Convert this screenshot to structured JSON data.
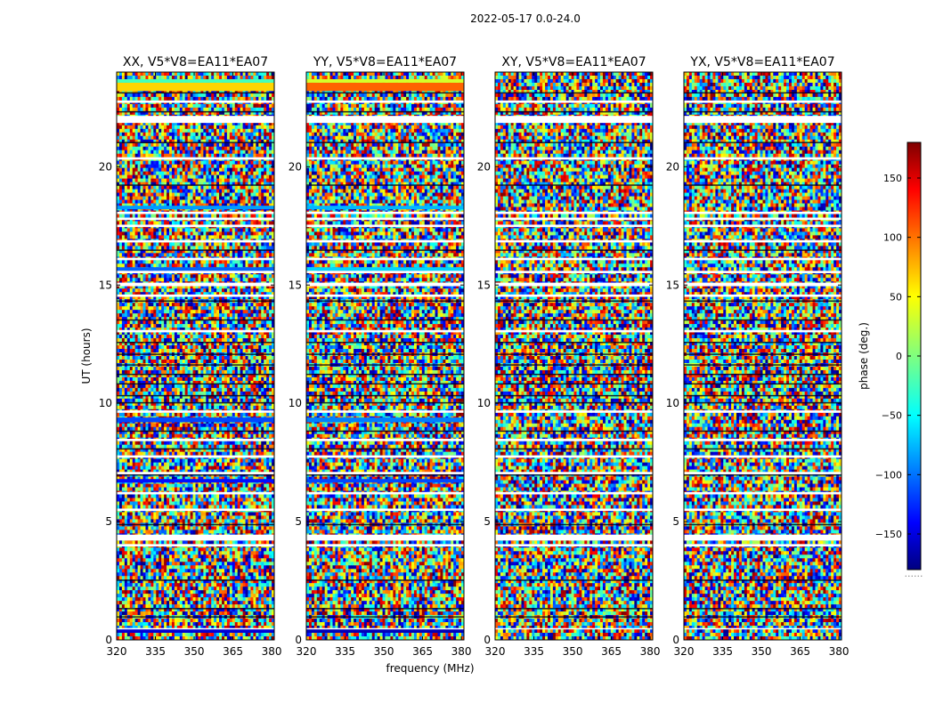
{
  "figure": {
    "suptitle": "2022-05-17 0.0-24.0"
  },
  "chart_data": {
    "type": "heatmap",
    "title": "2022-05-17 0.0-24.0",
    "xlabel": "frequency (MHz)",
    "ylabel": "UT (hours)",
    "xlim": [
      320,
      381
    ],
    "ylim": [
      0,
      24
    ],
    "x_ticks": [
      320,
      335,
      350,
      365,
      380
    ],
    "y_ticks": [
      0,
      5,
      10,
      15,
      20
    ],
    "value_label": "phase (deg.)",
    "value_range": [
      -180,
      180
    ],
    "colorbar_ticks": [
      150,
      100,
      50,
      0,
      -50,
      -100,
      -150
    ],
    "colorbar_tick_labels": [
      "150",
      "100",
      "50",
      "0",
      "−50",
      "−100",
      "−150"
    ],
    "colorbar_extra_label": "......",
    "colormap": "jet",
    "panels": [
      {
        "title": "XX, V5*V8=EA11*EA07",
        "polarization": "XX",
        "coherent_bands": [
          {
            "t0": 23.2,
            "t1": 23.55,
            "phase": 60
          },
          {
            "t0": 23.55,
            "t1": 23.7,
            "phase": -20
          },
          {
            "t0": 18.2,
            "t1": 18.35,
            "phase": -80
          },
          {
            "t0": 15.6,
            "t1": 15.75,
            "phase": -100
          },
          {
            "t0": 9.2,
            "t1": 9.4,
            "phase": -110
          },
          {
            "t0": 6.65,
            "t1": 6.8,
            "phase": -130
          },
          {
            "t0": 0.3,
            "t1": 0.45,
            "phase": -150
          }
        ]
      },
      {
        "title": "YY, V5*V8=EA11*EA07",
        "polarization": "YY",
        "coherent_bands": [
          {
            "t0": 23.2,
            "t1": 23.55,
            "phase": 100
          },
          {
            "t0": 23.55,
            "t1": 23.7,
            "phase": 30
          },
          {
            "t0": 18.2,
            "t1": 18.35,
            "phase": -70
          },
          {
            "t0": 15.6,
            "t1": 15.75,
            "phase": -60
          },
          {
            "t0": 9.2,
            "t1": 9.4,
            "phase": -90
          },
          {
            "t0": 6.65,
            "t1": 6.8,
            "phase": -110
          },
          {
            "t0": 0.3,
            "t1": 0.45,
            "phase": -160
          }
        ]
      },
      {
        "title": "XY, V5*V8=EA11*EA07",
        "polarization": "XY",
        "coherent_bands": []
      },
      {
        "title": "YX, V5*V8=EA11*EA07",
        "polarization": "YX",
        "coherent_bands": []
      }
    ],
    "flagged_intervals": [
      {
        "t0": 0.45,
        "t1": 0.5
      },
      {
        "t0": 3.95,
        "t1": 4.05
      },
      {
        "t0": 4.2,
        "t1": 4.45
      },
      {
        "t0": 5.45,
        "t1": 5.55
      },
      {
        "t0": 6.15,
        "t1": 6.25
      },
      {
        "t0": 7.0,
        "t1": 7.1
      },
      {
        "t0": 7.7,
        "t1": 7.8
      },
      {
        "t0": 8.4,
        "t1": 8.5
      },
      {
        "t0": 9.6,
        "t1": 9.7
      },
      {
        "t0": 13.0,
        "t1": 13.1
      },
      {
        "t0": 14.5,
        "t1": 14.6
      },
      {
        "t0": 14.95,
        "t1": 15.1
      },
      {
        "t0": 15.5,
        "t1": 15.6
      },
      {
        "t0": 16.05,
        "t1": 16.15
      },
      {
        "t0": 16.8,
        "t1": 16.9
      },
      {
        "t0": 17.45,
        "t1": 17.55
      },
      {
        "t0": 17.75,
        "t1": 17.85
      },
      {
        "t0": 18.0,
        "t1": 18.1
      },
      {
        "t0": 20.3,
        "t1": 20.4
      },
      {
        "t0": 21.85,
        "t1": 22.15
      },
      {
        "t0": 22.7,
        "t1": 22.8
      }
    ],
    "dark_intervals": [
      {
        "t0": 0.95,
        "t1": 1.0
      },
      {
        "t0": 1.3,
        "t1": 1.35
      },
      {
        "t0": 2.5,
        "t1": 2.55
      },
      {
        "t0": 4.85,
        "t1": 4.9
      },
      {
        "t0": 6.95,
        "t1": 7.0
      },
      {
        "t0": 8.05,
        "t1": 8.1
      },
      {
        "t0": 8.8,
        "t1": 8.85
      },
      {
        "t0": 10.0,
        "t1": 10.05
      },
      {
        "t0": 10.3,
        "t1": 10.35
      },
      {
        "t0": 10.8,
        "t1": 10.85
      },
      {
        "t0": 11.2,
        "t1": 11.25
      },
      {
        "t0": 11.6,
        "t1": 11.65
      },
      {
        "t0": 12.05,
        "t1": 12.1
      },
      {
        "t0": 12.55,
        "t1": 12.6
      },
      {
        "t0": 13.5,
        "t1": 13.55
      },
      {
        "t0": 14.3,
        "t1": 14.35
      },
      {
        "t0": 16.45,
        "t1": 16.5
      },
      {
        "t0": 19.2,
        "t1": 19.25
      },
      {
        "t0": 21.0,
        "t1": 21.05
      },
      {
        "t0": 22.3,
        "t1": 22.35
      },
      {
        "t0": 23.1,
        "t1": 23.15
      }
    ]
  }
}
